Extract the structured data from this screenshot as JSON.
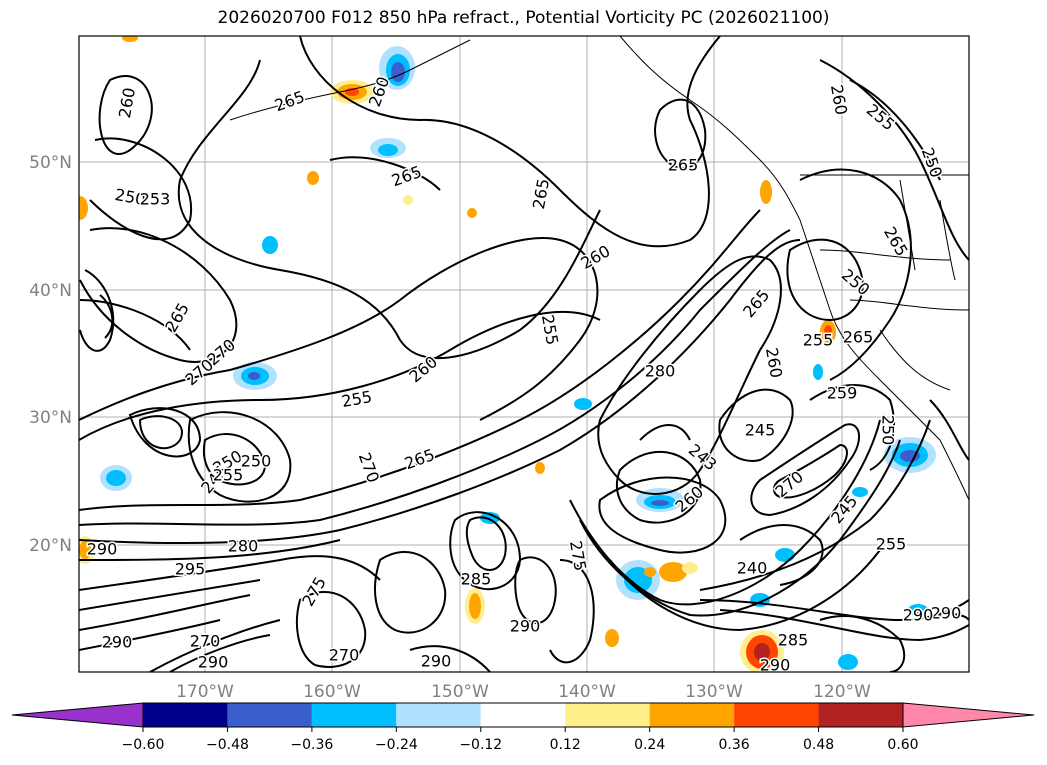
{
  "title": "2026020700 F012 850 hPa refract., Potential Vorticity PC (2026021100)",
  "map": {
    "projection": "lat-lon",
    "grid": true,
    "lat_labels": [
      "50°N",
      "40°N",
      "30°N",
      "20°N"
    ],
    "lon_labels": [
      "170°W",
      "160°W",
      "150°W",
      "140°W",
      "130°W",
      "120°W"
    ],
    "contour_color": "#000000",
    "contour_labels": [
      "260",
      "265",
      "250",
      "253",
      "265",
      "265",
      "260",
      "265",
      "255",
      "250",
      "260",
      "265",
      "270",
      "270",
      "255",
      "260",
      "265",
      "260",
      "255",
      "280",
      "265",
      "250",
      "265",
      "255",
      "259",
      "250",
      "245",
      "260",
      "250",
      "243",
      "250",
      "245",
      "255",
      "270",
      "265",
      "260",
      "270",
      "275",
      "245",
      "240",
      "290",
      "280",
      "295",
      "275",
      "255",
      "290",
      "290",
      "285",
      "270",
      "290",
      "290",
      "285",
      "290",
      "290",
      "270",
      "290"
    ],
    "pv_shading_note_colors": {
      "neg_strong": "#0000a0",
      "neg_mid": "#3a5fcd",
      "neg_light": "#00bfff",
      "neg_pale": "#a8dfff",
      "pos_pale": "#ffee90",
      "pos_light": "#ffa500",
      "pos_mid": "#ff4500",
      "pos_strong": "#b22222"
    }
  },
  "colorbar": {
    "ticks": [
      "−0.60",
      "−0.48",
      "−0.36",
      "−0.24",
      "−0.12",
      "0.12",
      "0.24",
      "0.36",
      "0.48",
      "0.60"
    ],
    "colors": [
      "#9932cc",
      "#00008b",
      "#3a5fcd",
      "#00bfff",
      "#b0e2ff",
      "#ffffff",
      "#fff08c",
      "#ffa500",
      "#ff4500",
      "#b22222",
      "#ff88aa"
    ]
  }
}
